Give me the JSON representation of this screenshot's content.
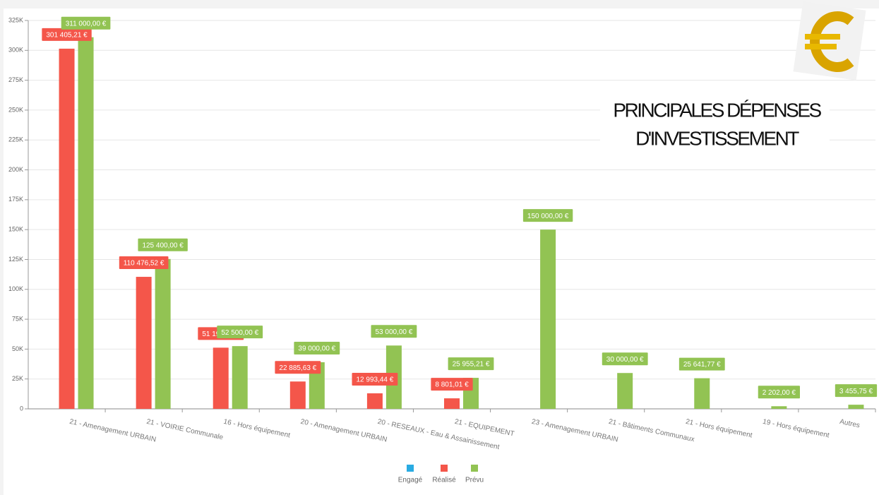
{
  "chart_data": {
    "type": "bar",
    "title": [
      "PRINCIPALES DÉPENSES",
      "D'INVESTISSEMENT"
    ],
    "categories": [
      "21 - Amenagement URBAIN",
      "21 - VOIRIE Communale",
      "16 - Hors équipement",
      "20 - Amenagement URBAIN",
      "20 - RESEAUX - Eau & Assainissement",
      "21 - EQUIPEMENT",
      "23 - Amenagement URBAIN",
      "21 - Bâtiments Communaux",
      "21 - Hors équipement",
      "19 - Hors équipement",
      "Autres"
    ],
    "series": [
      {
        "name": "Engagé",
        "color": "#29abe2",
        "values": [
          null,
          null,
          null,
          null,
          null,
          null,
          null,
          null,
          null,
          null,
          null
        ]
      },
      {
        "name": "Réalisé",
        "color": "#f4564a",
        "values": [
          301405.21,
          110476.52,
          51199.44,
          22885.63,
          12993.44,
          8801.01,
          null,
          null,
          null,
          null,
          null
        ],
        "value_labels": [
          "301 405,21 €",
          "110 476,52 €",
          "51 199,44 €",
          "22 885,63 €",
          "12 993,44 €",
          "8 801,01 €",
          null,
          null,
          null,
          null,
          null
        ]
      },
      {
        "name": "Prévu",
        "color": "#92c353",
        "values": [
          311000,
          125400,
          52500,
          39000,
          53000,
          25955.21,
          150000,
          30000,
          25641.77,
          2202,
          3455.75
        ],
        "value_labels": [
          "311 000,00 €",
          "125 400,00 €",
          "52 500,00 €",
          "39 000,00 €",
          "53 000,00 €",
          "25 955,21 €",
          "150 000,00 €",
          "30 000,00 €",
          "25 641,77 €",
          "2 202,00 €",
          "3 455,75 €"
        ]
      }
    ],
    "ylim": [
      0,
      325000
    ],
    "yticks": [
      0,
      {
        "value": 25000,
        "label": "25K"
      },
      {
        "value": 50000,
        "label": "50K"
      },
      {
        "value": 75000,
        "label": "75K"
      },
      {
        "value": 100000,
        "label": "100K"
      },
      {
        "value": 125000,
        "label": "125K"
      },
      {
        "value": 150000,
        "label": "150K"
      },
      {
        "value": 175000,
        "label": "175K"
      },
      {
        "value": 200000,
        "label": "200K"
      },
      {
        "value": 225000,
        "label": "225K"
      },
      {
        "value": 250000,
        "label": "250K"
      },
      {
        "value": 275000,
        "label": "275K"
      },
      {
        "value": 300000,
        "label": "300K"
      },
      {
        "value": 325000,
        "label": "325K"
      }
    ],
    "grid": true,
    "legend": "bottom"
  }
}
